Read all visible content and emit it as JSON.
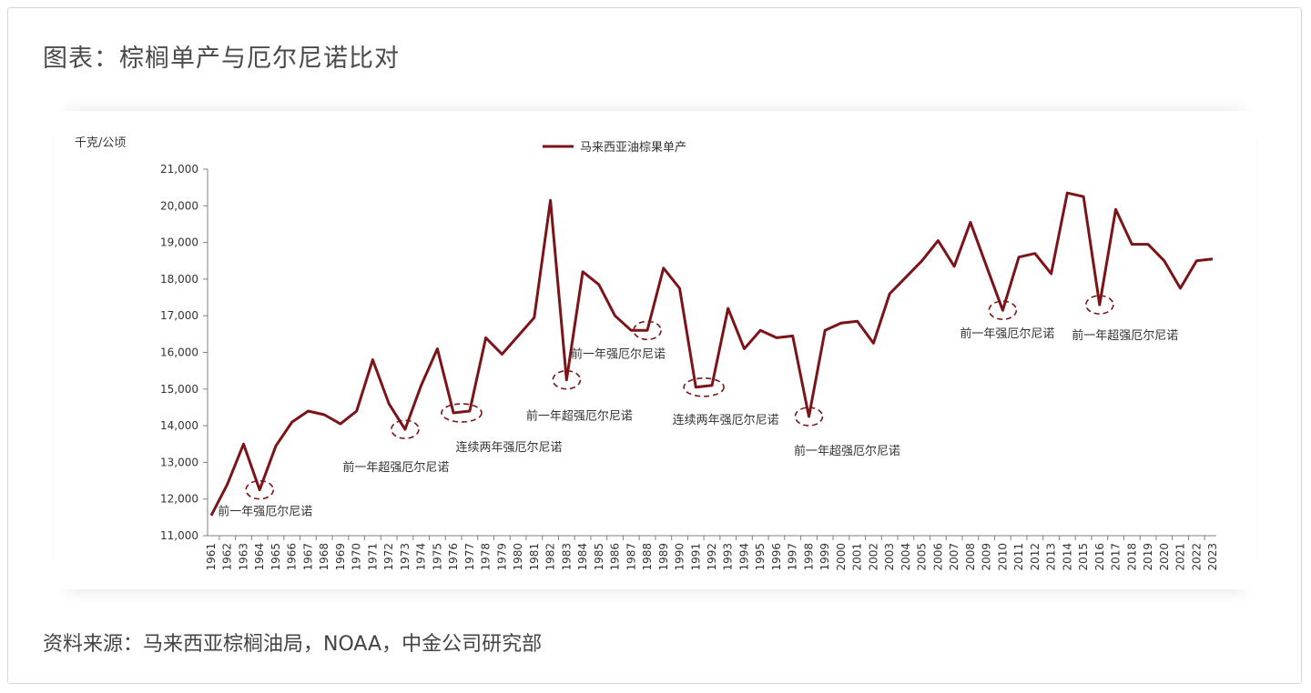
{
  "page": {
    "title": "图表：棕榈单产与厄尔尼诺比对",
    "source": "资料来源：马来西亚棕榈油局，NOAA，中金公司研究部"
  },
  "chart_data": {
    "type": "line",
    "ylabel": "千克/公顷",
    "ylim": [
      11000,
      21000
    ],
    "yticks": [
      11000,
      12000,
      13000,
      14000,
      15000,
      16000,
      17000,
      18000,
      19000,
      20000,
      21000
    ],
    "ytick_labels": [
      "11,000",
      "12,000",
      "13,000",
      "14,000",
      "15,000",
      "16,000",
      "17,000",
      "18,000",
      "19,000",
      "20,000",
      "21,000"
    ],
    "line_color": "#7b1418",
    "legend_position": "top-center",
    "grid": false,
    "x": [
      "1961",
      "1962",
      "1963",
      "1964",
      "1965",
      "1966",
      "1967",
      "1968",
      "1969",
      "1970",
      "1971",
      "1972",
      "1973",
      "1974",
      "1975",
      "1976",
      "1977",
      "1978",
      "1979",
      "1980",
      "1981",
      "1982",
      "1983",
      "1984",
      "1985",
      "1986",
      "1987",
      "1988",
      "1989",
      "1990",
      "1991",
      "1992",
      "1993",
      "1994",
      "1995",
      "1996",
      "1997",
      "1998",
      "1999",
      "2000",
      "2001",
      "2002",
      "2003",
      "2004",
      "2005",
      "2006",
      "2007",
      "2008",
      "2009",
      "2010",
      "2011",
      "2012",
      "2013",
      "2014",
      "2015",
      "2016",
      "2017",
      "2018",
      "2019",
      "2020",
      "2021",
      "2022",
      "2023"
    ],
    "series": [
      {
        "name": "马来西亚油棕果单产",
        "values": [
          11550,
          12400,
          13500,
          12250,
          13450,
          14100,
          14400,
          14300,
          14050,
          14400,
          15800,
          14600,
          13900,
          15100,
          16100,
          14350,
          14400,
          16400,
          15950,
          16450,
          16950,
          20150,
          15250,
          18200,
          17850,
          17000,
          16600,
          16600,
          18300,
          17750,
          15050,
          15100,
          17200,
          16100,
          16600,
          16400,
          16450,
          14250,
          16600,
          16800,
          16850,
          16250,
          17600,
          18050,
          18500,
          19050,
          18350,
          19550,
          18350,
          17150,
          18600,
          18700,
          18150,
          20350,
          20250,
          17300,
          19900,
          18950,
          18950,
          18500,
          17750,
          18500,
          18550
        ]
      }
    ],
    "annotations": [
      {
        "year": "1964",
        "text": "前一年强厄尔尼诺"
      },
      {
        "year": "1973",
        "text": "前一年超强厄尔尼诺"
      },
      {
        "year": "1976-1977",
        "text": "连续两年强厄尔尼诺"
      },
      {
        "year": "1983",
        "text": "前一年超强厄尔尼诺"
      },
      {
        "year": "1988",
        "text": "前一年强厄尔尼诺"
      },
      {
        "year": "1991-1992",
        "text": "连续两年强厄尔尼诺"
      },
      {
        "year": "1998",
        "text": "前一年超强厄尔尼诺"
      },
      {
        "year": "2010",
        "text": "前一年强厄尔尼诺"
      },
      {
        "year": "2016",
        "text": "前一年超强厄尔尼诺"
      }
    ]
  }
}
